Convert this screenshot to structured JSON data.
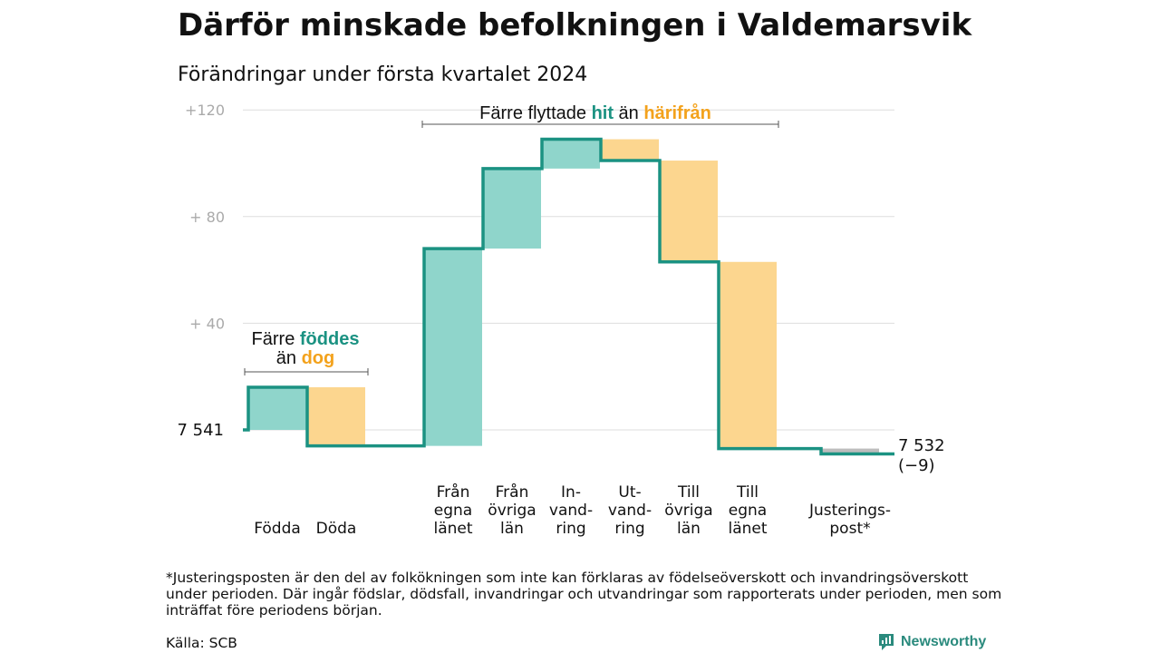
{
  "title": "Därför minskade befolkningen i Valdemarsvik",
  "subtitle": "Förändringar under första kvartalet 2024",
  "footnote": "*Justeringsposten är den del av folkökningen som inte kan förklaras av födelseöverskott och invandringsöverskott under perioden. Där ingår födslar, dödsfall, invandringar och utvandringar som rapporterats under perioden, men som inträffat före periodens början.",
  "source": "Källa: SCB",
  "brand": "Newsworthy",
  "colors": {
    "increase": "#8fd5cb",
    "decrease": "#fcd68f",
    "adjustment": "#bdbdbd",
    "line": "#1b9282",
    "green_text": "#1b9282",
    "orange_text": "#f3a21c",
    "grid": "#dddddd",
    "axis_text": "#aaaaaa"
  },
  "annotations": {
    "births_deaths": {
      "line1_prefix": "Färre ",
      "line1_highlight": "föddes",
      "line2_prefix": "än ",
      "line2_highlight": "dog"
    },
    "migration": {
      "prefix": "Färre flyttade ",
      "highlight1": "hit",
      "middle": " än ",
      "highlight2": "härifrån"
    }
  },
  "chart_data": {
    "type": "waterfall",
    "title": "Därför minskade befolkningen i Valdemarsvik",
    "subtitle": "Förändringar under första kvartalet 2024",
    "start_value": 7541,
    "start_label": "7 541",
    "end_value": 7532,
    "end_label": "7 532",
    "end_change_label": "(−9)",
    "y_ticks": [
      {
        "value": 120,
        "label": "+120"
      },
      {
        "value": 80,
        "label": "+  80"
      },
      {
        "value": 40,
        "label": "+  40"
      }
    ],
    "ylim": [
      -12,
      122
    ],
    "grid": true,
    "categories": [
      {
        "label": [
          "Födda"
        ],
        "change": 16,
        "kind": "increase"
      },
      {
        "label": [
          "Döda"
        ],
        "change": -22,
        "kind": "decrease"
      },
      {
        "label": [
          "Från",
          "egna",
          "länet"
        ],
        "change": 74,
        "kind": "increase"
      },
      {
        "label": [
          "Från",
          "övriga",
          "län"
        ],
        "change": 30,
        "kind": "increase"
      },
      {
        "label": [
          "In-",
          "vand-",
          "ring"
        ],
        "change": 11,
        "kind": "increase"
      },
      {
        "label": [
          "Ut-",
          "vand-",
          "ring"
        ],
        "change": -8,
        "kind": "decrease"
      },
      {
        "label": [
          "Till",
          "övriga",
          "län"
        ],
        "change": -38,
        "kind": "decrease"
      },
      {
        "label": [
          "Till",
          "egna",
          "länet"
        ],
        "change": -70,
        "kind": "decrease"
      },
      {
        "label": [
          "Justerings-",
          "post*"
        ],
        "change": -2,
        "kind": "adjustment"
      }
    ]
  }
}
